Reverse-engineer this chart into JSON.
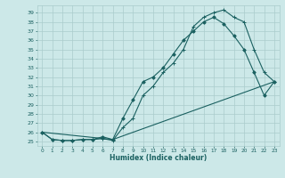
{
  "title": "",
  "xlabel": "Humidex (Indice chaleur)",
  "ylabel": "",
  "bg_color": "#cce8e8",
  "grid_color": "#aacccc",
  "line_color": "#1a6060",
  "ylim": [
    24.5,
    39.8
  ],
  "xlim": [
    -0.5,
    23.5
  ],
  "yticks": [
    25,
    26,
    27,
    28,
    29,
    30,
    31,
    32,
    33,
    34,
    35,
    36,
    37,
    38,
    39
  ],
  "xticks": [
    0,
    1,
    2,
    3,
    4,
    5,
    6,
    7,
    8,
    9,
    10,
    11,
    12,
    13,
    14,
    15,
    16,
    17,
    18,
    19,
    20,
    21,
    22,
    23
  ],
  "line1_x": [
    0,
    1,
    2,
    3,
    4,
    5,
    6,
    7,
    8,
    9,
    10,
    11,
    12,
    13,
    14,
    15,
    16,
    17,
    18,
    19,
    20,
    21,
    22,
    23
  ],
  "line1_y": [
    26,
    25.2,
    25.1,
    25.1,
    25.2,
    25.2,
    25.3,
    25.1,
    26.5,
    27.5,
    30,
    31,
    32.5,
    33.5,
    35,
    37.5,
    38.5,
    39,
    39.3,
    38.5,
    38,
    35,
    32.5,
    31.5
  ],
  "line2_x": [
    0,
    1,
    2,
    3,
    4,
    5,
    6,
    7,
    8,
    9,
    10,
    11,
    12,
    13,
    14,
    15,
    16,
    17,
    18,
    19,
    20,
    21,
    22,
    23
  ],
  "line2_y": [
    26,
    25.2,
    25.1,
    25.1,
    25.2,
    25.2,
    25.5,
    25.2,
    27.5,
    29.5,
    31.5,
    32,
    33,
    34.5,
    36,
    37,
    38,
    38.5,
    37.8,
    36.5,
    35,
    32.5,
    30,
    31.5
  ],
  "line3_x": [
    0,
    7,
    23
  ],
  "line3_y": [
    26,
    25.2,
    31.5
  ]
}
